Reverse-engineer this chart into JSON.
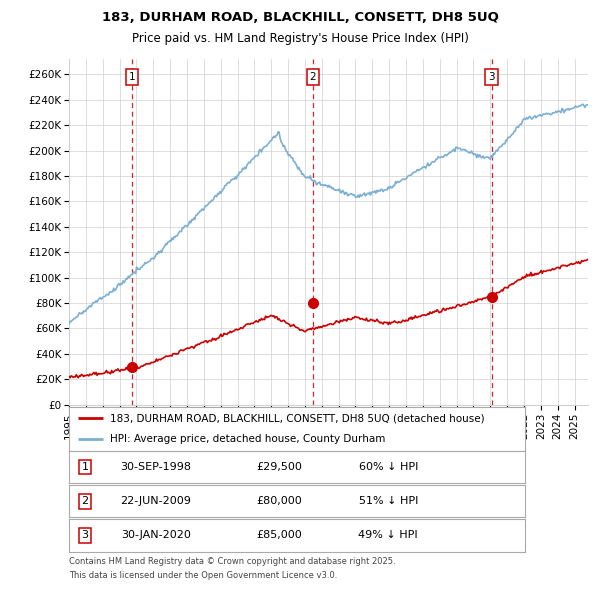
{
  "title_line1": "183, DURHAM ROAD, BLACKHILL, CONSETT, DH8 5UQ",
  "title_line2": "Price paid vs. HM Land Registry's House Price Index (HPI)",
  "xlim_start": 1995.0,
  "xlim_end": 2025.8,
  "ylim_min": 0,
  "ylim_max": 272000,
  "yticks": [
    0,
    20000,
    40000,
    60000,
    80000,
    100000,
    120000,
    140000,
    160000,
    180000,
    200000,
    220000,
    240000,
    260000
  ],
  "ytick_labels": [
    "£0",
    "£20K",
    "£40K",
    "£60K",
    "£80K",
    "£100K",
    "£120K",
    "£140K",
    "£160K",
    "£180K",
    "£200K",
    "£220K",
    "£240K",
    "£260K"
  ],
  "xticks": [
    1995,
    1996,
    1997,
    1998,
    1999,
    2000,
    2001,
    2002,
    2003,
    2004,
    2005,
    2006,
    2007,
    2008,
    2009,
    2010,
    2011,
    2012,
    2013,
    2014,
    2015,
    2016,
    2017,
    2018,
    2019,
    2020,
    2021,
    2022,
    2023,
    2024,
    2025
  ],
  "sale_dates_num": [
    1998.75,
    2009.47,
    2020.08
  ],
  "sale_prices": [
    29500,
    80000,
    85000
  ],
  "sale_labels": [
    "1",
    "2",
    "3"
  ],
  "vline_color": "#cc0000",
  "sale_dot_color": "#cc0000",
  "legend_line1": "183, DURHAM ROAD, BLACKHILL, CONSETT, DH8 5UQ (detached house)",
  "legend_line2": "HPI: Average price, detached house, County Durham",
  "table_entries": [
    {
      "num": "1",
      "date": "30-SEP-1998",
      "price": "£29,500",
      "hpi": "60% ↓ HPI"
    },
    {
      "num": "2",
      "date": "22-JUN-2009",
      "price": "£80,000",
      "hpi": "51% ↓ HPI"
    },
    {
      "num": "3",
      "date": "30-JAN-2020",
      "price": "£85,000",
      "hpi": "49% ↓ HPI"
    }
  ],
  "footnote1": "Contains HM Land Registry data © Crown copyright and database right 2025.",
  "footnote2": "This data is licensed under the Open Government Licence v3.0.",
  "hpi_color": "#7bafd4",
  "price_color": "#cc0000",
  "bg_color": "#ffffff",
  "grid_color": "#d0d0d0"
}
